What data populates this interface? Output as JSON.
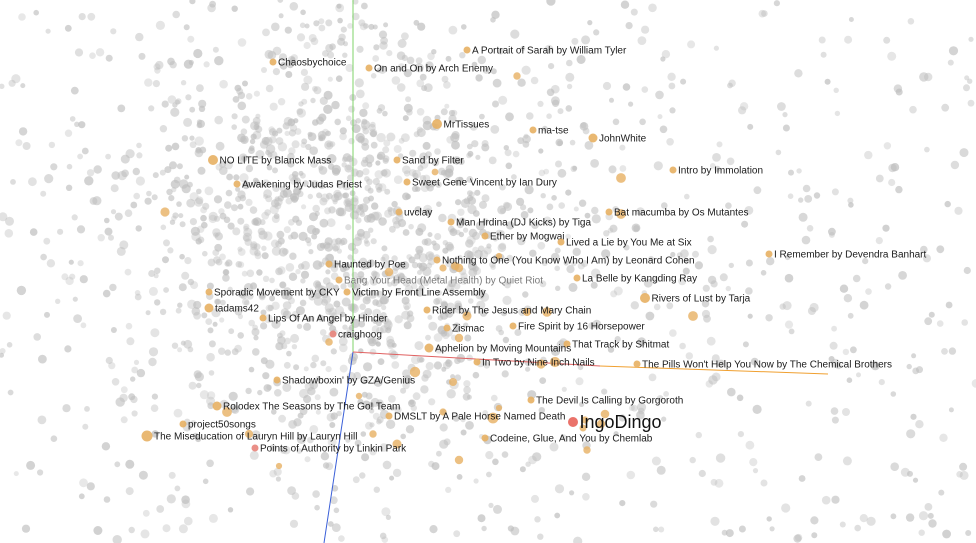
{
  "chart_data": {
    "type": "scatter",
    "title": "",
    "xlabel": "",
    "ylabel": "",
    "grid": false,
    "legend": "none",
    "colors": {
      "background_point": "#bdbdbd",
      "highlight_point": "#e7b063",
      "selected_point": "#e8635a",
      "link_point": "#e8837a",
      "axis_x": "#e06060",
      "axis_y": "#7fd36a",
      "axis_z": "#3a5fd8",
      "axis_orange": "#f0a030"
    },
    "points": [
      {
        "label": "Chaosbychoice",
        "x": -0.4,
        "y": 0.8
      },
      {
        "label": "On and On by Arch Enemy",
        "x": 0.08,
        "y": 0.77
      },
      {
        "label": "A Portrait of Sarah by William Tyler",
        "x": 0.57,
        "y": 0.86
      },
      {
        "label": "MrTissues",
        "x": 0.42,
        "y": 0.49
      },
      {
        "label": "ma-tse",
        "x": 0.9,
        "y": 0.46
      },
      {
        "label": "JohnWhite",
        "x": 1.2,
        "y": 0.42
      },
      {
        "label": "NO LITE by Blanck Mass",
        "x": -0.7,
        "y": 0.31
      },
      {
        "label": "Sand by Filter",
        "x": 0.22,
        "y": 0.31
      },
      {
        "label": "Intro by Immolation",
        "x": 1.6,
        "y": 0.26
      },
      {
        "label": "Awakening by Judas Priest",
        "x": -0.58,
        "y": 0.19
      },
      {
        "label": "Sweet Gene Vincent by Ian Dury",
        "x": 0.27,
        "y": 0.2
      },
      {
        "label": "uvclay",
        "x": 0.23,
        "y": 0.05
      },
      {
        "label": "Bat macumba by Os Mutantes",
        "x": 1.28,
        "y": 0.05
      },
      {
        "label": "Man Hrdina (DJ Kicks) by Tiga",
        "x": 0.49,
        "y": 0.0
      },
      {
        "label": "Ether by Mogwai",
        "x": 0.66,
        "y": -0.07
      },
      {
        "label": "Lived a Lie by You Me at Six",
        "x": 1.04,
        "y": -0.1
      },
      {
        "label": "I Remember by Devendra Banhart",
        "x": 2.08,
        "y": -0.16
      },
      {
        "label": "Haunted by Poe",
        "x": -0.12,
        "y": -0.21
      },
      {
        "label": "Nothing to One (You Know Who I Am) by Leonard Cohen",
        "x": 0.42,
        "y": -0.19
      },
      {
        "label": "Bang Your Head (Metal Health) by Quiet Riot",
        "x": -0.07,
        "y": -0.29
      },
      {
        "label": "La Belle by Kangding Ray",
        "x": 1.12,
        "y": -0.28
      },
      {
        "label": "Sporadic Movement by CKY",
        "x": -0.72,
        "y": -0.35
      },
      {
        "label": "Victim by Front Line Assembly",
        "x": -0.03,
        "y": -0.35
      },
      {
        "label": "Rivers of Lust by Tarja",
        "x": 1.46,
        "y": -0.38
      },
      {
        "label": "tadams42",
        "x": -0.72,
        "y": -0.43
      },
      {
        "label": "Rider by The Jesus and Mary Chain",
        "x": 0.37,
        "y": -0.44
      },
      {
        "label": "Lips Of An Angel by Hinder",
        "x": -0.45,
        "y": -0.48
      },
      {
        "label": "Zismac",
        "x": 0.47,
        "y": -0.53
      },
      {
        "label": "Fire Spirit by 16 Horsepower",
        "x": 0.8,
        "y": -0.52
      },
      {
        "label": "craighoog",
        "x": -0.1,
        "y": -0.56
      },
      {
        "label": "That Track by Shitmat",
        "x": 1.07,
        "y": -0.61
      },
      {
        "label": "Aphelion by Moving Mountains",
        "x": 0.38,
        "y": -0.63
      },
      {
        "label": "In Two by Nine Inch Nails",
        "x": 0.62,
        "y": -0.7
      },
      {
        "label": "The Pills Won't Help You Now by The Chemical Brothers",
        "x": 1.42,
        "y": -0.71
      },
      {
        "label": "Shadowboxin' by GZA/Genius",
        "x": -0.38,
        "y": -0.79
      },
      {
        "label": "The Devil Is Calling by Gorgoroth",
        "x": 0.89,
        "y": -0.89
      },
      {
        "label": "Rolodex The Seasons by The Go! Team",
        "x": -0.68,
        "y": -0.92
      },
      {
        "label": "DMSLT by A Pale Horse Named Death",
        "x": 0.18,
        "y": -0.97
      },
      {
        "label": "IngoDingo",
        "x": 1.1,
        "y": -1.0
      },
      {
        "label": "project50songs",
        "x": -0.85,
        "y": -1.01
      },
      {
        "label": "The Miseducation of Lauryn Hill by Lauryn Hill",
        "x": -1.03,
        "y": -1.07
      },
      {
        "label": "Codeine, Glue, And You by Chemlab",
        "x": 0.66,
        "y": -1.08
      },
      {
        "label": "Points of Authority by Linkin Park",
        "x": -0.49,
        "y": -1.13
      }
    ]
  }
}
